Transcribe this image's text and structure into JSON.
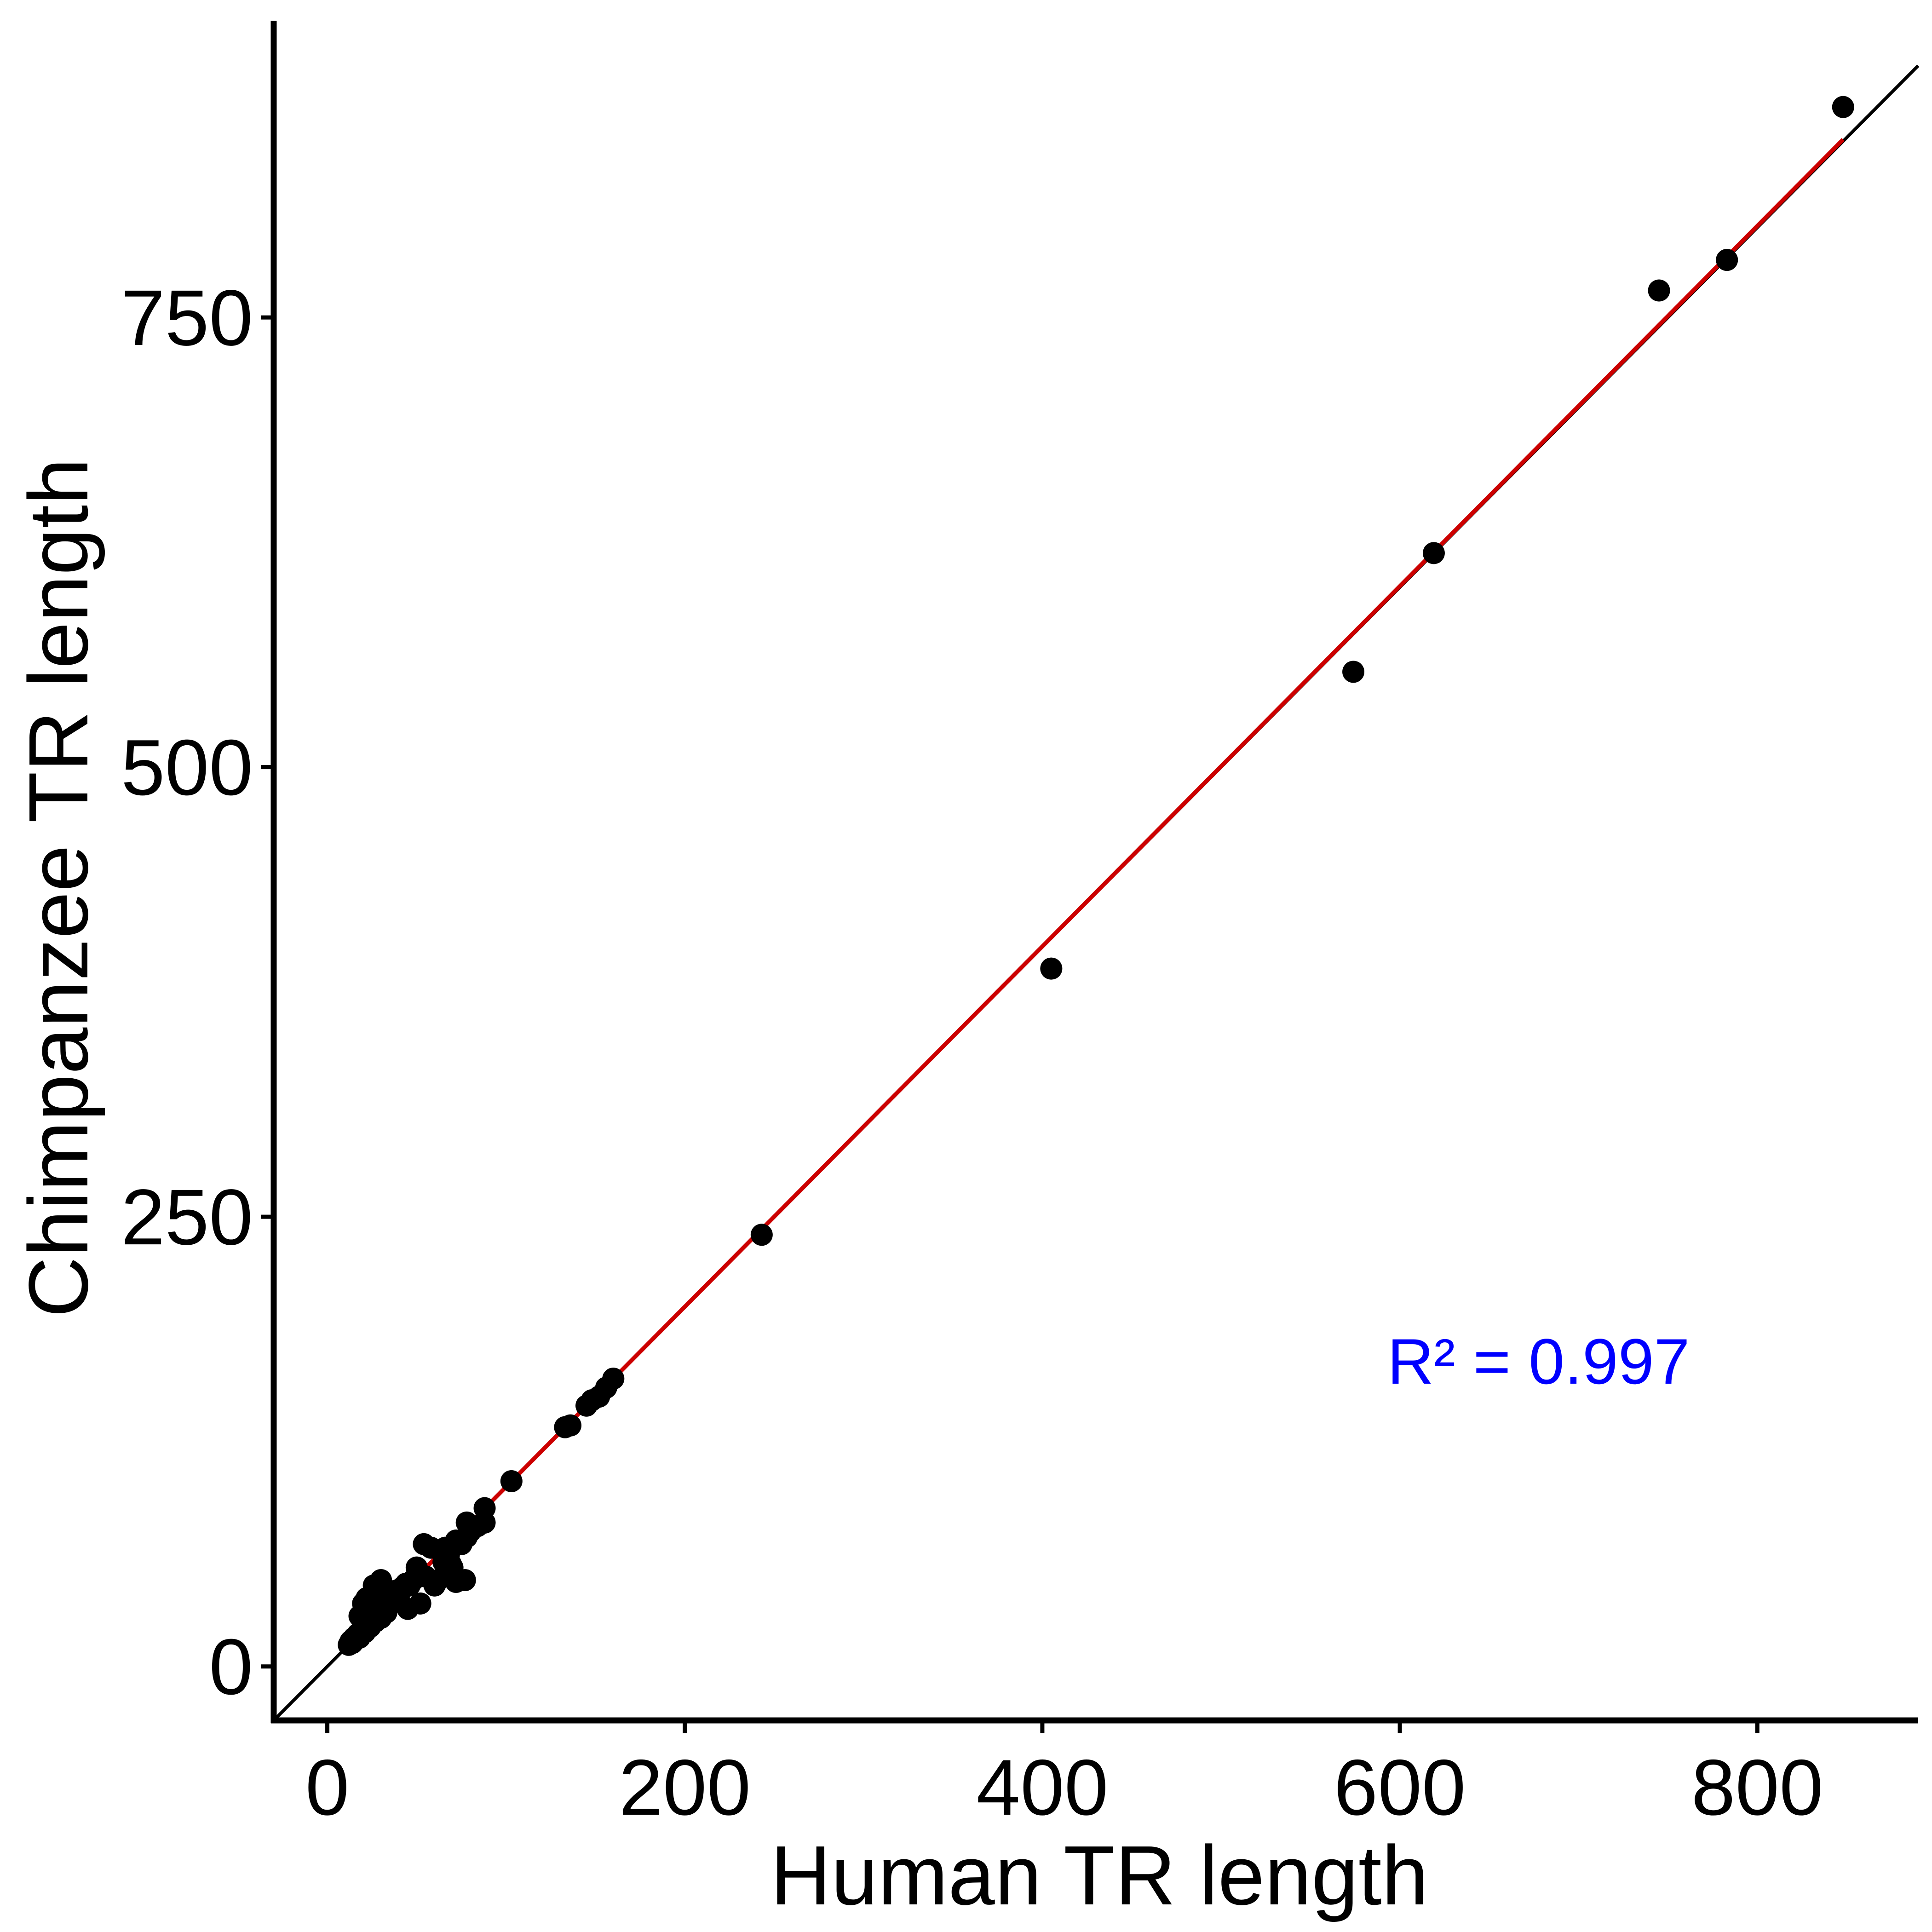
{
  "chart_data": {
    "type": "scatter",
    "xlabel": "Human TR length",
    "ylabel": "Chimpanzee TR length",
    "xlim": [
      -30,
      890
    ],
    "ylim": [
      -30,
      915
    ],
    "x_ticks": [
      "0",
      "200",
      "400",
      "600",
      "800"
    ],
    "y_ticks": [
      "0",
      "250",
      "500",
      "750"
    ],
    "grid": false,
    "legend": "none",
    "annotation": {
      "text": "R² = 0.997",
      "x": 593,
      "y": 170,
      "color": "#0000ff"
    },
    "reference_line": {
      "slope": 1,
      "intercept": 0,
      "color": "#000000"
    },
    "fit_line": {
      "color": "#cc0000",
      "x_range": [
        12,
        848
      ],
      "slope": 1.0015,
      "intercept": -0.3
    },
    "points": [
      [
        12,
        12
      ],
      [
        13,
        14
      ],
      [
        14,
        13
      ],
      [
        15,
        16
      ],
      [
        16,
        15
      ],
      [
        17,
        18
      ],
      [
        18,
        16
      ],
      [
        19,
        20
      ],
      [
        20,
        22
      ],
      [
        21,
        19
      ],
      [
        22,
        24
      ],
      [
        23,
        26
      ],
      [
        24,
        22
      ],
      [
        25,
        28
      ],
      [
        26,
        30
      ],
      [
        27,
        25
      ],
      [
        28,
        33
      ],
      [
        29,
        36
      ],
      [
        30,
        27
      ],
      [
        31,
        32
      ],
      [
        32,
        35
      ],
      [
        33,
        30
      ],
      [
        34,
        38
      ],
      [
        35,
        40
      ],
      [
        36,
        37
      ],
      [
        38,
        42
      ],
      [
        40,
        39
      ],
      [
        42,
        44
      ],
      [
        44,
        46
      ],
      [
        46,
        45
      ],
      [
        48,
        48
      ],
      [
        22,
        38
      ],
      [
        25,
        40
      ],
      [
        28,
        42
      ],
      [
        20,
        35
      ],
      [
        18,
        28
      ],
      [
        30,
        48
      ],
      [
        26,
        45
      ],
      [
        45,
        32
      ],
      [
        52,
        35
      ],
      [
        50,
        55
      ],
      [
        55,
        50
      ],
      [
        60,
        45
      ],
      [
        62,
        48
      ],
      [
        65,
        58
      ],
      [
        68,
        62
      ],
      [
        70,
        55
      ],
      [
        72,
        70
      ],
      [
        75,
        68
      ],
      [
        78,
        72
      ],
      [
        80,
        75
      ],
      [
        84,
        78
      ],
      [
        88,
        80
      ],
      [
        54,
        68
      ],
      [
        58,
        66
      ],
      [
        66,
        66
      ],
      [
        68,
        66
      ],
      [
        70,
        67
      ],
      [
        69,
        57
      ],
      [
        72,
        47
      ],
      [
        77,
        48
      ],
      [
        78,
        80
      ],
      [
        88,
        88
      ],
      [
        103,
        103
      ],
      [
        133,
        133
      ],
      [
        136,
        134
      ],
      [
        145,
        145
      ],
      [
        148,
        148
      ],
      [
        152,
        150
      ],
      [
        156,
        155
      ],
      [
        160,
        160
      ],
      [
        243,
        240
      ],
      [
        405,
        388
      ],
      [
        574,
        553
      ],
      [
        619,
        619
      ],
      [
        745,
        765
      ],
      [
        783,
        782
      ],
      [
        848,
        867
      ]
    ]
  }
}
